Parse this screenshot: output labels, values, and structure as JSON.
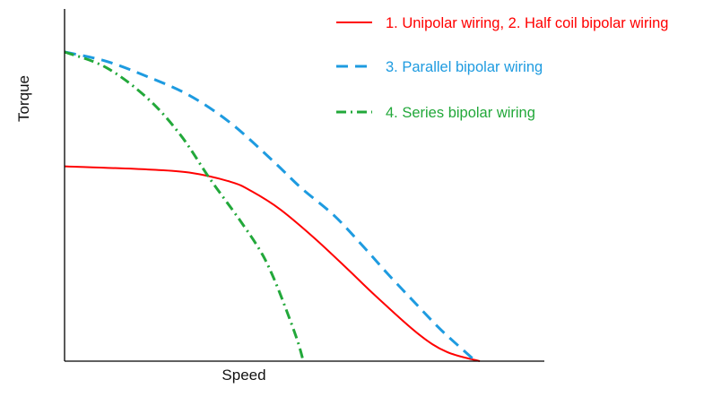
{
  "chart_data": {
    "type": "line",
    "title": "",
    "xlabel": "Speed",
    "ylabel": "Torque",
    "xlim": [
      0,
      100
    ],
    "ylim": [
      0,
      100
    ],
    "grid": false,
    "ticks": false,
    "legend_position": "top-right",
    "series": [
      {
        "name": "1. Unipolar wiring, 2. Half coil bipolar wiring",
        "color": "#ff0000",
        "style": "solid",
        "x": [
          0,
          20,
          30,
          40,
          45,
          52,
          60,
          68,
          75,
          85,
          92,
          100
        ],
        "y": [
          63,
          62,
          61,
          58,
          55,
          49,
          40,
          30,
          21,
          9,
          3,
          0
        ]
      },
      {
        "name": "3. Parallel bipolar wiring",
        "color": "#1e9be0",
        "style": "dashed",
        "x": [
          0,
          10,
          20,
          30,
          40,
          50,
          57,
          65,
          72,
          78,
          85,
          90,
          94,
          99
        ],
        "y": [
          100,
          97,
          92,
          86,
          77,
          65,
          56,
          47,
          37,
          28,
          18,
          11,
          6,
          0
        ]
      },
      {
        "name": "4. Series bipolar wiring",
        "color": "#22a83a",
        "style": "dash-dot",
        "x": [
          0,
          10,
          20,
          28,
          35,
          42,
          47,
          50,
          53,
          56,
          57.5
        ],
        "y": [
          100,
          95,
          85,
          73,
          59,
          46,
          36,
          28,
          18,
          7,
          0
        ]
      }
    ]
  }
}
